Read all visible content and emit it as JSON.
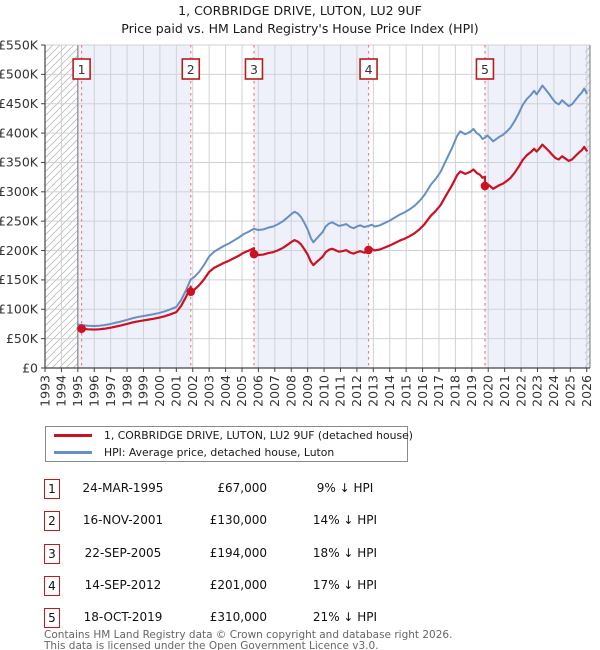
{
  "title": {
    "line1": "1, CORBRIDGE DRIVE, LUTON, LU2 9UF",
    "line2": "Price paid vs. HM Land Registry's House Price Index (HPI)"
  },
  "legend": {
    "series1_label": "1, CORBRIDGE DRIVE, LUTON, LU2 9UF (detached house)",
    "series2_label": "HPI: Average price, detached house, Luton"
  },
  "table": {
    "rows": [
      {
        "n": "1",
        "date": "24-MAR-1995",
        "price": "£67,000",
        "vs_hpi": "9% ↓ HPI"
      },
      {
        "n": "2",
        "date": "16-NOV-2001",
        "price": "£130,000",
        "vs_hpi": "14% ↓ HPI"
      },
      {
        "n": "3",
        "date": "22-SEP-2005",
        "price": "£194,000",
        "vs_hpi": "18% ↓ HPI"
      },
      {
        "n": "4",
        "date": "14-SEP-2012",
        "price": "£201,000",
        "vs_hpi": "17% ↓ HPI"
      },
      {
        "n": "5",
        "date": "18-OCT-2019",
        "price": "£310,000",
        "vs_hpi": "21% ↓ HPI"
      }
    ]
  },
  "footer": {
    "line1": "Contains HM Land Registry data © Crown copyright and database right 2026.",
    "line2": "This data is licensed under the Open Government Licence v3.0."
  },
  "colors": {
    "price_line": "#cc1122",
    "hpi_line": "#6690c5",
    "sale_dashed_line": "#f47c7c",
    "band_blue": "#eef1f9",
    "band_white": "#ffffff",
    "grid": "#cfd2d8",
    "hatch": "#bbbbbb",
    "marker_box_border": "#b91c1c",
    "axis": "#444444"
  },
  "chart_data": {
    "type": "line",
    "title": "1, CORBRIDGE DRIVE, LUTON, LU2 9UF — Price paid vs. HM Land Registry's House Price Index (HPI)",
    "xlabel": "",
    "ylabel": "",
    "xlim": [
      1993.0,
      2026.2
    ],
    "ylim": [
      0,
      550
    ],
    "grid": true,
    "legend_position": "below-chart",
    "unit": "GBP thousands",
    "x_ticks": [
      1993,
      1994,
      1995,
      1996,
      1997,
      1998,
      1999,
      2000,
      2001,
      2002,
      2003,
      2004,
      2005,
      2006,
      2007,
      2008,
      2009,
      2010,
      2011,
      2012,
      2013,
      2014,
      2015,
      2016,
      2017,
      2018,
      2019,
      2020,
      2021,
      2022,
      2023,
      2024,
      2025,
      2026
    ],
    "x_tick_labels": [
      "1993",
      "1994",
      "1995",
      "1996",
      "1997",
      "1998",
      "1999",
      "2000",
      "2001",
      "2002",
      "2003",
      "2004",
      "2005",
      "2006",
      "2007",
      "2008",
      "2009",
      "2010",
      "2011",
      "2012",
      "2013",
      "2014",
      "2015",
      "2016",
      "2017",
      "2018",
      "2019",
      "2020",
      "2021",
      "2022",
      "2023",
      "2024",
      "2025",
      "2026"
    ],
    "y_ticks": [
      0,
      50,
      100,
      150,
      200,
      250,
      300,
      350,
      400,
      450,
      500,
      550
    ],
    "y_tick_labels": [
      "£0",
      "£50K",
      "£100K",
      "£150K",
      "£200K",
      "£250K",
      "£300K",
      "£350K",
      "£400K",
      "£450K",
      "£500K",
      "£550K"
    ],
    "bands": [
      {
        "from": 1995.0,
        "to": 2001.88,
        "color": "#eef1f9"
      },
      {
        "from": 2001.88,
        "to": 2005.73,
        "color": "#ffffff"
      },
      {
        "from": 2005.73,
        "to": 2012.71,
        "color": "#eef1f9"
      },
      {
        "from": 2012.71,
        "to": 2019.8,
        "color": "#ffffff"
      },
      {
        "from": 2019.8,
        "to": 2026.2,
        "color": "#eef1f9"
      }
    ],
    "hatch_regions": [
      {
        "from": 1993.0,
        "to": 1995.0
      },
      {
        "from": 2025.9,
        "to": 2026.2
      }
    ],
    "sales": [
      {
        "n": "1",
        "date": "24-MAR-1995",
        "year": 1995.23,
        "price_k": 67,
        "price_label": "£67,000",
        "pct_below_hpi": 9
      },
      {
        "n": "2",
        "date": "16-NOV-2001",
        "year": 2001.88,
        "price_k": 130,
        "price_label": "£130,000",
        "pct_below_hpi": 14
      },
      {
        "n": "3",
        "date": "22-SEP-2005",
        "year": 2005.73,
        "price_k": 194,
        "price_label": "£194,000",
        "pct_below_hpi": 18
      },
      {
        "n": "4",
        "date": "14-SEP-2012",
        "year": 2012.71,
        "price_k": 201,
        "price_label": "£201,000",
        "pct_below_hpi": 17
      },
      {
        "n": "5",
        "date": "18-OCT-2019",
        "year": 2019.8,
        "price_k": 310,
        "price_label": "£310,000",
        "pct_below_hpi": 21
      }
    ],
    "price_line_rule": "Between consecutive sales the red line equals sale price × HPI(t)/HPI(sale date); it steps to the new sale price at each sale.",
    "series_names": [
      "1, CORBRIDGE DRIVE, LUTON, LU2 9UF (detached house)",
      "HPI: Average price, detached house, Luton"
    ],
    "hpi_series": [
      [
        1995.0,
        74
      ],
      [
        1995.3,
        73
      ],
      [
        1995.6,
        72
      ],
      [
        1996.0,
        71.5
      ],
      [
        1996.3,
        72
      ],
      [
        1996.6,
        73
      ],
      [
        1997.0,
        75
      ],
      [
        1997.3,
        77
      ],
      [
        1997.6,
        79
      ],
      [
        1998.0,
        82
      ],
      [
        1998.3,
        84.5
      ],
      [
        1998.6,
        86.5
      ],
      [
        1999.0,
        88.5
      ],
      [
        1999.3,
        90
      ],
      [
        1999.6,
        91.5
      ],
      [
        2000.0,
        94
      ],
      [
        2000.3,
        96.5
      ],
      [
        2000.6,
        99.5
      ],
      [
        2001.0,
        104
      ],
      [
        2001.3,
        116
      ],
      [
        2001.6,
        133
      ],
      [
        2001.88,
        151
      ],
      [
        2002.1,
        155
      ],
      [
        2002.4,
        164
      ],
      [
        2002.7,
        176
      ],
      [
        2003.0,
        190
      ],
      [
        2003.3,
        198
      ],
      [
        2003.6,
        203
      ],
      [
        2003.9,
        208
      ],
      [
        2004.2,
        212
      ],
      [
        2004.5,
        217
      ],
      [
        2004.8,
        222
      ],
      [
        2005.1,
        228
      ],
      [
        2005.4,
        232
      ],
      [
        2005.73,
        237
      ],
      [
        2006.0,
        235
      ],
      [
        2006.3,
        236
      ],
      [
        2006.6,
        239
      ],
      [
        2006.9,
        241
      ],
      [
        2007.2,
        245
      ],
      [
        2007.5,
        250
      ],
      [
        2007.8,
        257
      ],
      [
        2008.0,
        262
      ],
      [
        2008.2,
        266
      ],
      [
        2008.4,
        263
      ],
      [
        2008.6,
        257
      ],
      [
        2008.8,
        247
      ],
      [
        2009.0,
        236
      ],
      [
        2009.2,
        221
      ],
      [
        2009.35,
        214
      ],
      [
        2009.5,
        219
      ],
      [
        2009.7,
        225
      ],
      [
        2009.9,
        231
      ],
      [
        2010.1,
        241
      ],
      [
        2010.3,
        246
      ],
      [
        2010.5,
        248
      ],
      [
        2010.7,
        245
      ],
      [
        2010.9,
        242
      ],
      [
        2011.1,
        243
      ],
      [
        2011.35,
        245
      ],
      [
        2011.6,
        240
      ],
      [
        2011.8,
        238
      ],
      [
        2012.0,
        241
      ],
      [
        2012.2,
        243
      ],
      [
        2012.45,
        240
      ],
      [
        2012.71,
        242
      ],
      [
        2012.9,
        244
      ],
      [
        2013.1,
        241
      ],
      [
        2013.4,
        243
      ],
      [
        2013.7,
        247
      ],
      [
        2014.0,
        251
      ],
      [
        2014.3,
        256
      ],
      [
        2014.6,
        261
      ],
      [
        2014.9,
        265
      ],
      [
        2015.2,
        270
      ],
      [
        2015.5,
        276
      ],
      [
        2015.8,
        284
      ],
      [
        2016.1,
        294
      ],
      [
        2016.5,
        312
      ],
      [
        2016.8,
        322
      ],
      [
        2017.1,
        334
      ],
      [
        2017.4,
        352
      ],
      [
        2017.8,
        375
      ],
      [
        2018.1,
        395
      ],
      [
        2018.3,
        403
      ],
      [
        2018.6,
        398
      ],
      [
        2018.9,
        402
      ],
      [
        2019.1,
        407
      ],
      [
        2019.3,
        400
      ],
      [
        2019.5,
        396
      ],
      [
        2019.65,
        390
      ],
      [
        2019.8,
        392
      ],
      [
        2019.95,
        396
      ],
      [
        2020.1,
        392
      ],
      [
        2020.3,
        386
      ],
      [
        2020.5,
        390
      ],
      [
        2020.7,
        394
      ],
      [
        2020.9,
        397
      ],
      [
        2021.1,
        402
      ],
      [
        2021.35,
        409
      ],
      [
        2021.6,
        420
      ],
      [
        2021.85,
        433
      ],
      [
        2022.1,
        448
      ],
      [
        2022.35,
        458
      ],
      [
        2022.6,
        465
      ],
      [
        2022.8,
        472
      ],
      [
        2022.95,
        466
      ],
      [
        2023.1,
        472
      ],
      [
        2023.3,
        481
      ],
      [
        2023.5,
        474
      ],
      [
        2023.7,
        467
      ],
      [
        2023.9,
        459
      ],
      [
        2024.1,
        452
      ],
      [
        2024.3,
        449
      ],
      [
        2024.5,
        456
      ],
      [
        2024.7,
        451
      ],
      [
        2024.9,
        446
      ],
      [
        2025.1,
        449
      ],
      [
        2025.3,
        456
      ],
      [
        2025.5,
        463
      ],
      [
        2025.7,
        469
      ],
      [
        2025.85,
        476
      ],
      [
        2026.0,
        468
      ]
    ]
  }
}
